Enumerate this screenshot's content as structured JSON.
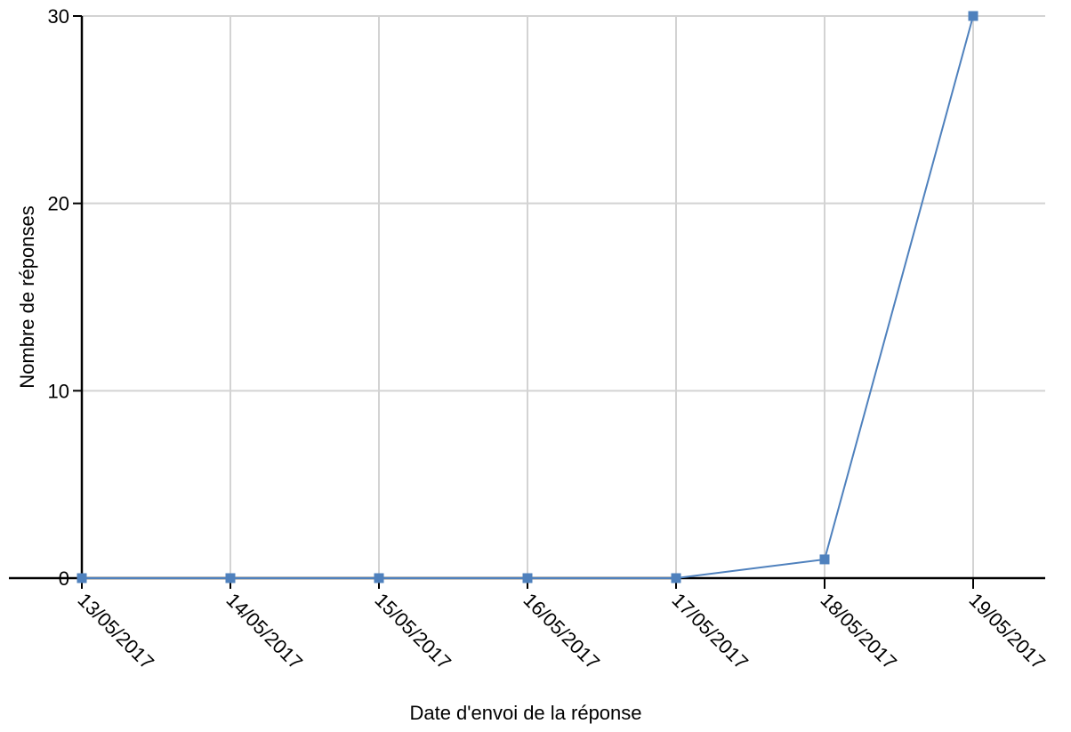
{
  "chart_data": {
    "type": "line",
    "title": "",
    "xlabel": "Date d'envoi de la réponse",
    "ylabel": "Nombre de réponses",
    "categories": [
      "13/05/2017",
      "14/05/2017",
      "15/05/2017",
      "16/05/2017",
      "17/05/2017",
      "18/05/2017",
      "19/05/2017"
    ],
    "series": [
      {
        "values": [
          0,
          0,
          0,
          0,
          0,
          1,
          30
        ],
        "color": "#4f81bd",
        "marker": "square"
      }
    ],
    "ylim": [
      0,
      30
    ],
    "yticks": [
      0,
      10,
      20,
      30
    ],
    "grid": true,
    "legend": "none"
  }
}
